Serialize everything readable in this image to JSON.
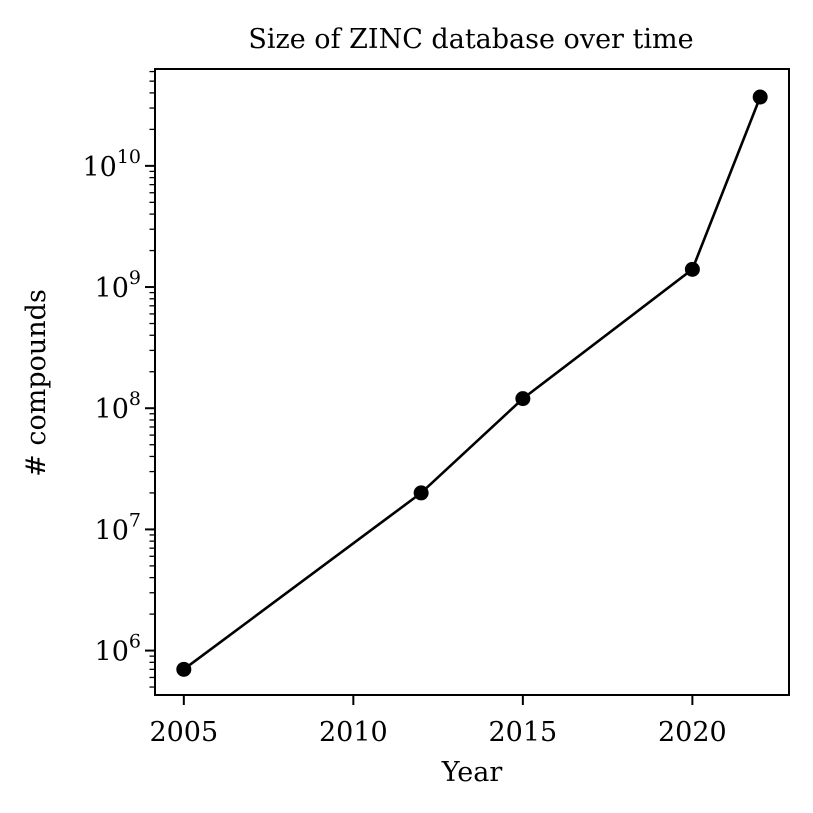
{
  "chart_data": {
    "type": "line",
    "title": "Size of ZINC database over time",
    "xlabel": "Year",
    "ylabel": "# compounds",
    "yscale": "log",
    "xlim": [
      2004.15,
      2022.85
    ],
    "ylim": [
      430000,
      63000000000
    ],
    "x_ticks": [
      2005,
      2010,
      2015,
      2020
    ],
    "y_ticks": [
      {
        "value": 1000000,
        "base": "10",
        "exp": "6"
      },
      {
        "value": 10000000,
        "base": "10",
        "exp": "7"
      },
      {
        "value": 100000000,
        "base": "10",
        "exp": "8"
      },
      {
        "value": 1000000000,
        "base": "10",
        "exp": "9"
      },
      {
        "value": 10000000000,
        "base": "10",
        "exp": "10"
      }
    ],
    "grid": false,
    "series": [
      {
        "color": "#000000",
        "marker": "circle",
        "points": [
          {
            "x": 2005,
            "y": 700000
          },
          {
            "x": 2012,
            "y": 20000000
          },
          {
            "x": 2015,
            "y": 120000000
          },
          {
            "x": 2020,
            "y": 1400000000
          },
          {
            "x": 2022,
            "y": 37000000000
          }
        ]
      }
    ]
  }
}
